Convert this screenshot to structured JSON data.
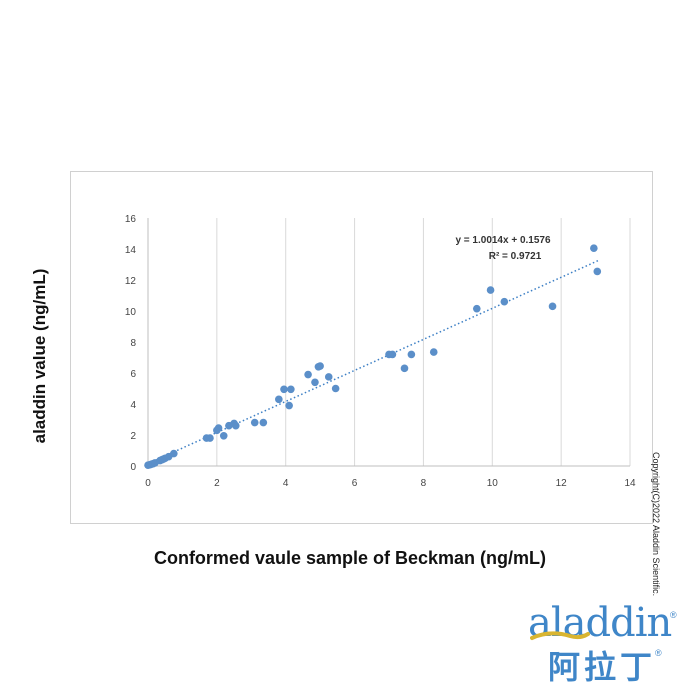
{
  "chart_data": {
    "type": "scatter",
    "title": "",
    "xlabel": "Conformed vaule sample of Beckman (ng/mL)",
    "ylabel": "aladdin value (ng/mL)",
    "xlim": [
      0,
      14
    ],
    "ylim": [
      0,
      16
    ],
    "x_ticks": [
      0,
      2,
      4,
      6,
      8,
      10,
      12,
      14
    ],
    "y_ticks": [
      0,
      2,
      4,
      6,
      8,
      10,
      12,
      14,
      16
    ],
    "grid": "vertical",
    "point_color": "#5b8fc9",
    "trend_color": "#3c7fc5",
    "trendline": {
      "slope": 1.0014,
      "intercept": 0.1576,
      "equation": "y = 1.0014x + 0.1576",
      "r2_label": "R² = 0.9721"
    },
    "points": [
      [
        0.0,
        0.05
      ],
      [
        0.05,
        0.08
      ],
      [
        0.1,
        0.12
      ],
      [
        0.15,
        0.15
      ],
      [
        0.2,
        0.2
      ],
      [
        0.35,
        0.35
      ],
      [
        0.4,
        0.4
      ],
      [
        0.45,
        0.45
      ],
      [
        0.5,
        0.5
      ],
      [
        0.6,
        0.6
      ],
      [
        0.75,
        0.8
      ],
      [
        1.7,
        1.8
      ],
      [
        1.8,
        1.8
      ],
      [
        2.0,
        2.3
      ],
      [
        2.05,
        2.45
      ],
      [
        2.2,
        1.95
      ],
      [
        2.35,
        2.6
      ],
      [
        2.5,
        2.75
      ],
      [
        2.55,
        2.6
      ],
      [
        3.1,
        2.8
      ],
      [
        3.35,
        2.8
      ],
      [
        3.8,
        4.3
      ],
      [
        3.95,
        4.95
      ],
      [
        4.1,
        3.9
      ],
      [
        4.15,
        4.95
      ],
      [
        4.65,
        5.9
      ],
      [
        4.85,
        5.4
      ],
      [
        4.95,
        6.4
      ],
      [
        5.0,
        6.45
      ],
      [
        5.25,
        5.75
      ],
      [
        5.45,
        5.0
      ],
      [
        7.0,
        7.2
      ],
      [
        7.1,
        7.2
      ],
      [
        7.45,
        6.3
      ],
      [
        7.65,
        7.2
      ],
      [
        8.3,
        7.35
      ],
      [
        9.55,
        10.15
      ],
      [
        9.95,
        11.35
      ],
      [
        10.35,
        10.6
      ],
      [
        11.75,
        10.3
      ],
      [
        12.95,
        14.05
      ],
      [
        13.05,
        12.55
      ]
    ]
  },
  "copyright": "Copyright(C)2022 Aladdin Scientific.",
  "logo": {
    "text_en": "aladdin",
    "text_cn": "阿拉丁",
    "registered": "®"
  }
}
